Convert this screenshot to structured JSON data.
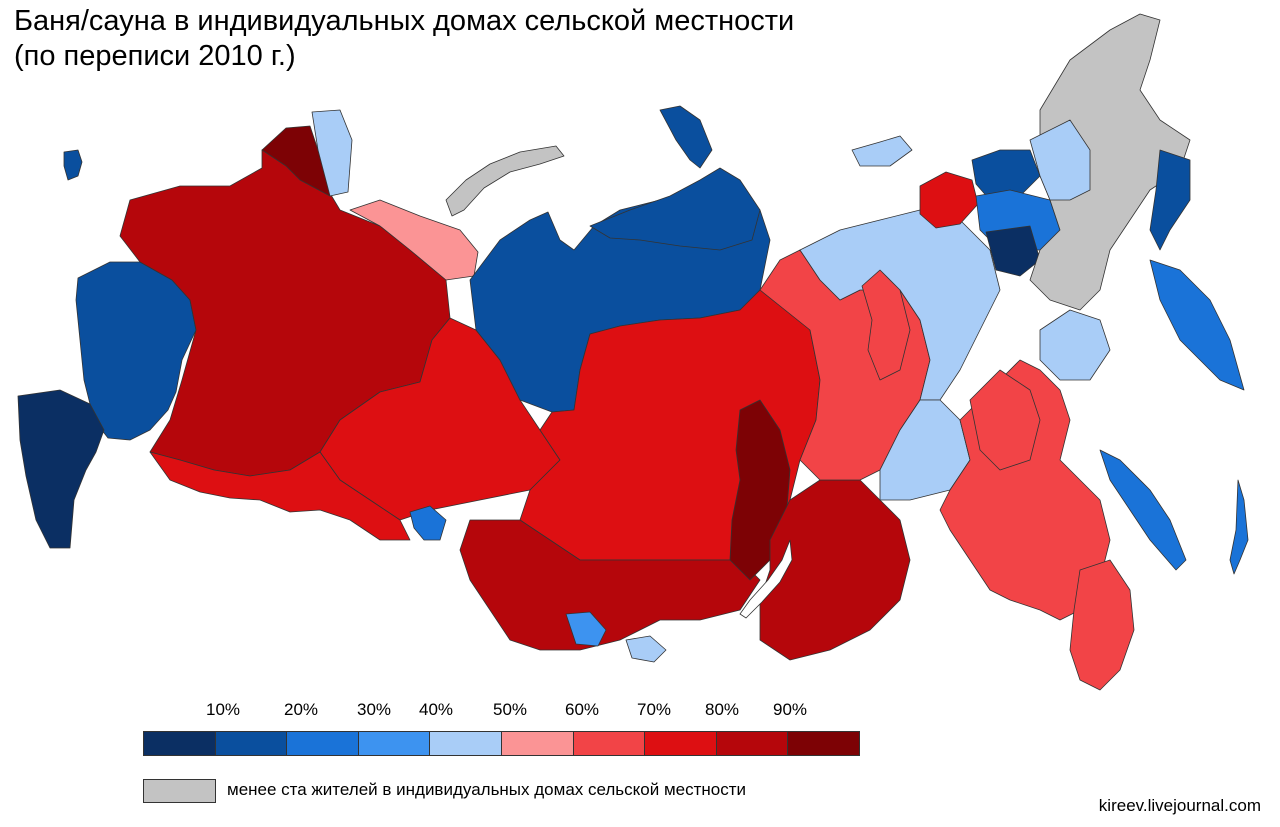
{
  "title": {
    "line1": "Баня/сауна в индивидуальных домах сельской местности",
    "line2": "(по переписи 2010 г.)"
  },
  "legend": {
    "ticks": [
      "10%",
      "20%",
      "30%",
      "40%",
      "50%",
      "60%",
      "70%",
      "80%",
      "90%"
    ],
    "colors": [
      "#0b2f63",
      "#0a4f9e",
      "#1a73d8",
      "#3d93f0",
      "#a9cdf7",
      "#fb9495",
      "#f24447",
      "#dd0f12",
      "#b5060b",
      "#7d0205"
    ],
    "nodata_color": "#c3c3c3",
    "nodata_label": "менее ста жителей в индивидуальных домах сельской местности"
  },
  "credit": "kireev.livejournal.com",
  "map": {
    "ocean": "#ffffff",
    "region_stroke": "#333333",
    "regions": [
      {
        "name": "north-west-blue",
        "shade": 1
      },
      {
        "name": "european-russia-center",
        "shade": 8
      },
      {
        "name": "volga-urals",
        "shade": 7
      },
      {
        "name": "yamal-taimyr",
        "shade": 1
      },
      {
        "name": "siberia-center",
        "shade": 7
      },
      {
        "name": "baikal-region",
        "shade": 9
      },
      {
        "name": "yakutia-west",
        "shade": 5
      },
      {
        "name": "yakutia-east",
        "shade": 4
      },
      {
        "name": "chukotka",
        "shade": 0
      },
      {
        "name": "kamchatka",
        "shade": 1
      },
      {
        "name": "far-east-south",
        "shade": 6
      },
      {
        "name": "sakhalin",
        "shade": 2
      }
    ]
  }
}
